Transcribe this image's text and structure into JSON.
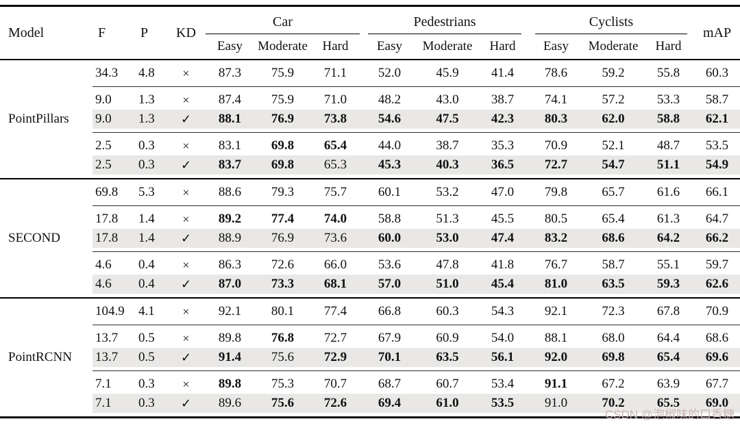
{
  "header": {
    "model": "Model",
    "f": "F",
    "p": "P",
    "kd": "KD",
    "map": "mAP",
    "groups": [
      {
        "label": "Car"
      },
      {
        "label": "Pedestrians"
      },
      {
        "label": "Cyclists"
      }
    ],
    "sub": [
      "Easy",
      "Moderate",
      "Hard"
    ]
  },
  "symbols": {
    "x": "×",
    "check": "✓"
  },
  "colors": {
    "row_shade": "#e9e8e6",
    "rule": "#000000",
    "watermark": "#c6b2b2"
  },
  "watermark": "CSDN @泡椒味的口香糖",
  "groups": [
    {
      "model": "PointPillars",
      "blocks": [
        {
          "rows": [
            {
              "f": "34.3",
              "p": "4.8",
              "kd": "x",
              "shaded": false,
              "values": [
                "87.3",
                "75.9",
                "71.1",
                "52.0",
                "45.9",
                "41.4",
                "78.6",
                "59.2",
                "55.8",
                "60.3"
              ],
              "bold": [
                0,
                0,
                0,
                0,
                0,
                0,
                0,
                0,
                0,
                0
              ]
            }
          ]
        },
        {
          "rows": [
            {
              "f": "9.0",
              "p": "1.3",
              "kd": "x",
              "shaded": false,
              "values": [
                "87.4",
                "75.9",
                "71.0",
                "48.2",
                "43.0",
                "38.7",
                "74.1",
                "57.2",
                "53.3",
                "58.7"
              ],
              "bold": [
                0,
                0,
                0,
                0,
                0,
                0,
                0,
                0,
                0,
                0
              ]
            },
            {
              "f": "9.0",
              "p": "1.3",
              "kd": "check",
              "shaded": true,
              "values": [
                "88.1",
                "76.9",
                "73.8",
                "54.6",
                "47.5",
                "42.3",
                "80.3",
                "62.0",
                "58.8",
                "62.1"
              ],
              "bold": [
                1,
                1,
                1,
                1,
                1,
                1,
                1,
                1,
                1,
                1
              ]
            }
          ]
        },
        {
          "rows": [
            {
              "f": "2.5",
              "p": "0.3",
              "kd": "x",
              "shaded": false,
              "values": [
                "83.1",
                "69.8",
                "65.4",
                "44.0",
                "38.7",
                "35.3",
                "70.9",
                "52.1",
                "48.7",
                "53.5"
              ],
              "bold": [
                0,
                1,
                1,
                0,
                0,
                0,
                0,
                0,
                0,
                0
              ]
            },
            {
              "f": "2.5",
              "p": "0.3",
              "kd": "check",
              "shaded": true,
              "values": [
                "83.7",
                "69.8",
                "65.3",
                "45.3",
                "40.3",
                "36.5",
                "72.7",
                "54.7",
                "51.1",
                "54.9"
              ],
              "bold": [
                1,
                1,
                0,
                1,
                1,
                1,
                1,
                1,
                1,
                1
              ]
            }
          ]
        }
      ]
    },
    {
      "model": "SECOND",
      "blocks": [
        {
          "rows": [
            {
              "f": "69.8",
              "p": "5.3",
              "kd": "x",
              "shaded": false,
              "values": [
                "88.6",
                "79.3",
                "75.7",
                "60.1",
                "53.2",
                "47.0",
                "79.8",
                "65.7",
                "61.6",
                "66.1"
              ],
              "bold": [
                0,
                0,
                0,
                0,
                0,
                0,
                0,
                0,
                0,
                0
              ]
            }
          ]
        },
        {
          "rows": [
            {
              "f": "17.8",
              "p": "1.4",
              "kd": "x",
              "shaded": false,
              "values": [
                "89.2",
                "77.4",
                "74.0",
                "58.8",
                "51.3",
                "45.5",
                "80.5",
                "65.4",
                "61.3",
                "64.7"
              ],
              "bold": [
                1,
                1,
                1,
                0,
                0,
                0,
                0,
                0,
                0,
                0
              ]
            },
            {
              "f": "17.8",
              "p": "1.4",
              "kd": "check",
              "shaded": true,
              "values": [
                "88.9",
                "76.9",
                "73.6",
                "60.0",
                "53.0",
                "47.4",
                "83.2",
                "68.6",
                "64.2",
                "66.2"
              ],
              "bold": [
                0,
                0,
                0,
                1,
                1,
                1,
                1,
                1,
                1,
                1
              ]
            }
          ]
        },
        {
          "rows": [
            {
              "f": "4.6",
              "p": "0.4",
              "kd": "x",
              "shaded": false,
              "values": [
                "86.3",
                "72.6",
                "66.0",
                "53.6",
                "47.8",
                "41.8",
                "76.7",
                "58.7",
                "55.1",
                "59.7"
              ],
              "bold": [
                0,
                0,
                0,
                0,
                0,
                0,
                0,
                0,
                0,
                0
              ]
            },
            {
              "f": "4.6",
              "p": "0.4",
              "kd": "check",
              "shaded": true,
              "values": [
                "87.0",
                "73.3",
                "68.1",
                "57.0",
                "51.0",
                "45.4",
                "81.0",
                "63.5",
                "59.3",
                "62.6"
              ],
              "bold": [
                1,
                1,
                1,
                1,
                1,
                1,
                1,
                1,
                1,
                1
              ]
            }
          ]
        }
      ]
    },
    {
      "model": "PointRCNN",
      "blocks": [
        {
          "rows": [
            {
              "f": "104.9",
              "p": "4.1",
              "kd": "x",
              "shaded": false,
              "values": [
                "92.1",
                "80.1",
                "77.4",
                "66.8",
                "60.3",
                "54.3",
                "92.1",
                "72.3",
                "67.8",
                "70.9"
              ],
              "bold": [
                0,
                0,
                0,
                0,
                0,
                0,
                0,
                0,
                0,
                0
              ]
            }
          ]
        },
        {
          "rows": [
            {
              "f": "13.7",
              "p": "0.5",
              "kd": "x",
              "shaded": false,
              "values": [
                "89.8",
                "76.8",
                "72.7",
                "67.9",
                "60.9",
                "54.0",
                "88.1",
                "68.0",
                "64.4",
                "68.6"
              ],
              "bold": [
                0,
                1,
                0,
                0,
                0,
                0,
                0,
                0,
                0,
                0
              ]
            },
            {
              "f": "13.7",
              "p": "0.5",
              "kd": "check",
              "shaded": true,
              "values": [
                "91.4",
                "75.6",
                "72.9",
                "70.1",
                "63.5",
                "56.1",
                "92.0",
                "69.8",
                "65.4",
                "69.6"
              ],
              "bold": [
                1,
                0,
                1,
                1,
                1,
                1,
                1,
                1,
                1,
                1
              ]
            }
          ]
        },
        {
          "rows": [
            {
              "f": "7.1",
              "p": "0.3",
              "kd": "x",
              "shaded": false,
              "values": [
                "89.8",
                "75.3",
                "70.7",
                "68.7",
                "60.7",
                "53.4",
                "91.1",
                "67.2",
                "63.9",
                "67.7"
              ],
              "bold": [
                1,
                0,
                0,
                0,
                0,
                0,
                1,
                0,
                0,
                0
              ]
            },
            {
              "f": "7.1",
              "p": "0.3",
              "kd": "check",
              "shaded": true,
              "values": [
                "89.6",
                "75.6",
                "72.6",
                "69.4",
                "61.0",
                "53.5",
                "91.0",
                "70.2",
                "65.5",
                "69.0"
              ],
              "bold": [
                0,
                1,
                1,
                1,
                1,
                1,
                0,
                1,
                1,
                1
              ]
            }
          ]
        }
      ]
    }
  ]
}
